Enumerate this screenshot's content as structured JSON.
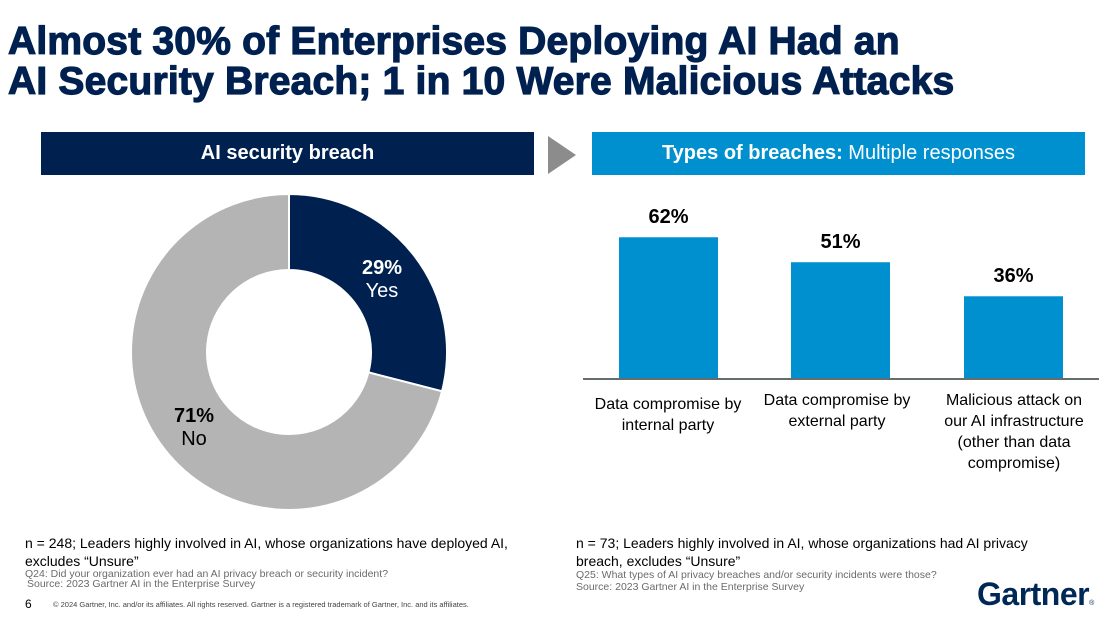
{
  "title": {
    "line1": "Almost 30% of Enterprises Deploying AI Had an",
    "line2": "AI Security Breach; 1 in 10 Were Malicious Attacks"
  },
  "left_panel": {
    "header": "AI security breach",
    "note": "n = 248; Leaders highly involved in AI, whose organizations have deployed AI, excludes “Unsure”",
    "question": "Q24: Did your organization ever had an AI privacy breach or security incident?",
    "source": "Source: 2023 Gartner AI in the Enterprise Survey"
  },
  "right_panel": {
    "header_bold": "Types of breaches:",
    "header_regular": " Multiple responses",
    "note": "n = 73; Leaders highly involved in AI, whose organizations had AI privacy breach, excludes “Unsure”",
    "question": "Q25: What types of AI privacy breaches and/or security incidents were those?",
    "source": "Source: 2023 Gartner AI in the Enterprise Survey"
  },
  "footer": {
    "page_number": "6",
    "copyright": "© 2024 Gartner, Inc. and/or its affiliates. All rights reserved. Gartner is a registered trademark of Gartner, Inc. and its affiliates.",
    "logo_text": "Gartner",
    "logo_mark": "®"
  },
  "colors": {
    "navy": "#002150",
    "blue": "#0090d0",
    "gray": "#b4b4b4",
    "arrow_gray": "#8c8c8c",
    "axis": "#666d6d"
  },
  "chart_data": [
    {
      "type": "pie",
      "subtype": "donut",
      "title": "AI security breach",
      "slices": [
        {
          "label": "Yes",
          "value": 29,
          "display": "29%",
          "color": "#002150"
        },
        {
          "label": "No",
          "value": 71,
          "display": "71%",
          "color": "#b4b4b4"
        }
      ],
      "start_angle": "12 o'clock, clockwise"
    },
    {
      "type": "bar",
      "title": "Types of breaches: Multiple responses",
      "categories": [
        "Data compromise by internal party",
        "Data compromise by external party",
        "Malicious attack on our AI infrastructure (other than data compromise)"
      ],
      "category_lines": [
        [
          "Data compromise by",
          "internal party"
        ],
        [
          "Data compromise by",
          "external party"
        ],
        [
          "Malicious attack on",
          "our AI infrastructure",
          "(other than data",
          "compromise)"
        ]
      ],
      "values": [
        62,
        51,
        36
      ],
      "labels": [
        "62%",
        "51%",
        "36%"
      ],
      "unit": "%",
      "ylim": [
        0,
        100
      ],
      "grid": false,
      "legend": "none",
      "color": "#0090d0"
    }
  ]
}
